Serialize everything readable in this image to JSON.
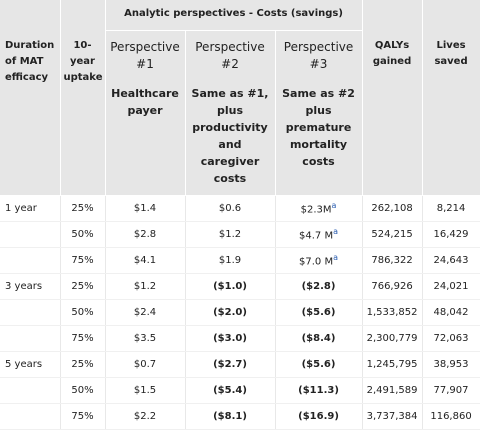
{
  "header": {
    "group_title": "Analytic perspectives - Costs (savings)",
    "columns": {
      "duration": "Duration of MAT efficacy",
      "uptake": "10-year uptake",
      "perspective_1": {
        "title": "Perspective #1",
        "description": "Healthcare payer"
      },
      "perspective_2": {
        "title": "Perspective #2",
        "description": "Same as #1, plus productivity and caregiver costs"
      },
      "perspective_3": {
        "title": "Perspective #3",
        "description": "Same as #2 plus premature mortality costs"
      },
      "qalys": "QALYs gained",
      "lives": "Lives saved"
    }
  },
  "table": {
    "rows": [
      {
        "duration": "1 year",
        "uptake": "25%",
        "perspective_1": "$1.4",
        "perspective_2": "$0.6",
        "perspective_3": "$2.3M",
        "note": "a",
        "qalys": "262,108",
        "lives": "8,214",
        "bold_savings": false
      },
      {
        "uptake": "50%",
        "perspective_1": "$2.8",
        "perspective_2": "$1.2",
        "perspective_3": "$4.7 M",
        "note": "a",
        "qalys": "524,215",
        "lives": "16,429",
        "bold_savings": false
      },
      {
        "uptake": "75%",
        "perspective_1": "$4.1",
        "perspective_2": "$1.9",
        "perspective_3": "$7.0 M",
        "note": "a",
        "qalys": "786,322",
        "lives": "24,643",
        "bold_savings": false
      },
      {
        "duration": "3 years",
        "uptake": "25%",
        "perspective_1": "$1.2",
        "perspective_2": "($1.0)",
        "perspective_3": "($2.8)",
        "qalys": "766,926",
        "lives": "24,021",
        "bold_savings": true
      },
      {
        "uptake": "50%",
        "perspective_1": "$2.4",
        "perspective_2": "($2.0)",
        "perspective_3": "($5.6)",
        "qalys": "1,533,852",
        "lives": "48,042",
        "bold_savings": true
      },
      {
        "uptake": "75%",
        "perspective_1": "$3.5",
        "perspective_2": "($3.0)",
        "perspective_3": "($8.4)",
        "qalys": "2,300,779",
        "lives": "72,063",
        "bold_savings": true
      },
      {
        "duration": "5 years",
        "uptake": "25%",
        "perspective_1": "$0.7",
        "perspective_2": "($2.7)",
        "perspective_3": "($5.6)",
        "qalys": "1,245,795",
        "lives": "38,953",
        "bold_savings": true
      },
      {
        "uptake": "50%",
        "perspective_1": "$1.5",
        "perspective_2": "($5.4)",
        "perspective_3": "($11.3)",
        "qalys": "2,491,589",
        "lives": "77,907",
        "bold_savings": true
      },
      {
        "uptake": "75%",
        "perspective_1": "$2.2",
        "perspective_2": "($8.1)",
        "perspective_3": "($16.9)",
        "qalys": "3,737,384",
        "lives": "116,860",
        "bold_savings": true
      }
    ]
  }
}
